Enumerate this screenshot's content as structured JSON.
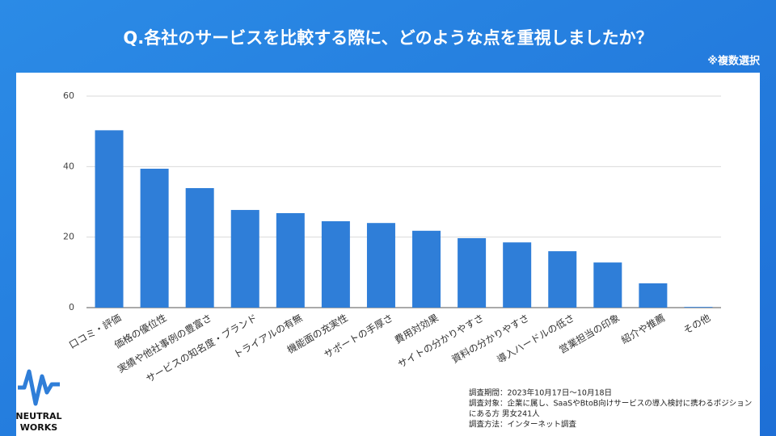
{
  "chart_data": {
    "type": "bar",
    "title": "Q.各社のサービスを比較する際に、どのような点を重視しましたか？",
    "subtitle": "※複数選択",
    "categories": [
      "口コミ・評価",
      "価格の優位性",
      "実績や他社事例の豊富さ",
      "サービスの知名度・ブランド",
      "トライアルの有無",
      "機能面の充実性",
      "サポートの手厚さ",
      "費用対効果",
      "サイトの分かりやすさ",
      "資料の分かりやすさ",
      "導入ハードルの低さ",
      "営業担当の印象",
      "紹介や推薦",
      "その他"
    ],
    "values": [
      50.3,
      39.4,
      33.9,
      27.7,
      26.8,
      24.5,
      24.0,
      21.8,
      19.7,
      18.5,
      16.0,
      12.8,
      6.9,
      0.2
    ],
    "color": "#2f7ed8",
    "ylim": [
      0,
      60
    ],
    "yticks": [
      0,
      20,
      40,
      60
    ],
    "grid": true
  },
  "notes": [
    "調査期間：2023年10月17日～10月18日",
    "調査対象：企業に属し、SaaSやBtoB向けサービスの導入検討に携わるポジション",
    "にある方 男女241人",
    "調査方法：インターネット調査"
  ],
  "brand": [
    "NEUTRAL",
    "WORKS"
  ]
}
